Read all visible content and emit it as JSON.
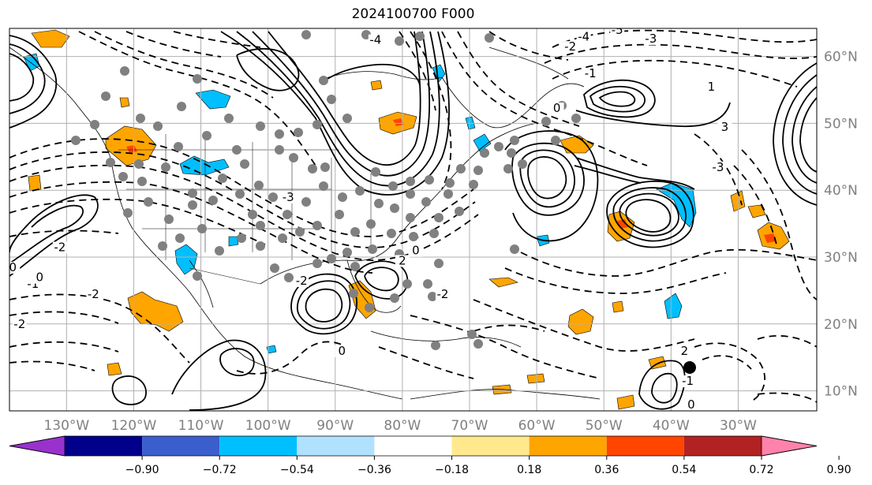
{
  "title": "2024100700 F000",
  "map": {
    "lon_labels": [
      "130°W",
      "120°W",
      "110°W",
      "100°W",
      "90°W",
      "80°W",
      "70°W",
      "60°W",
      "50°W",
      "40°W",
      "30°W"
    ],
    "lat_labels": [
      "60°N",
      "50°N",
      "40°N",
      "30°N",
      "20°N",
      "10°N"
    ],
    "contour_labels": [
      {
        "text": "-5",
        "lon": -48,
        "lat": 63.5
      },
      {
        "text": "-4",
        "lon": -53,
        "lat": 62.5
      },
      {
        "text": "-3",
        "lon": -43,
        "lat": 62.2
      },
      {
        "text": "-2",
        "lon": -55,
        "lat": 61
      },
      {
        "text": "-1",
        "lon": -52,
        "lat": 57
      },
      {
        "text": "0",
        "lon": -57,
        "lat": 51.8
      },
      {
        "text": "-4",
        "lon": -84,
        "lat": 62
      },
      {
        "text": "-3",
        "lon": -97,
        "lat": 38.5
      },
      {
        "text": "-2",
        "lon": -131,
        "lat": 31
      },
      {
        "text": "-2",
        "lon": -126,
        "lat": 24
      },
      {
        "text": "-1",
        "lon": -135,
        "lat": 25.5
      },
      {
        "text": "0",
        "lon": -138,
        "lat": 28
      },
      {
        "text": "0",
        "lon": -134,
        "lat": 26.5
      },
      {
        "text": "-2",
        "lon": -137,
        "lat": 19.5
      },
      {
        "text": "-2",
        "lon": -95,
        "lat": 26
      },
      {
        "text": "2",
        "lon": -80,
        "lat": 29
      },
      {
        "text": "0",
        "lon": -78,
        "lat": 30.5
      },
      {
        "text": "2",
        "lon": -38,
        "lat": 15.5
      },
      {
        "text": "-2",
        "lon": -74,
        "lat": 24
      },
      {
        "text": "0",
        "lon": -89,
        "lat": 15.5
      },
      {
        "text": "0",
        "lon": -37,
        "lat": 7.5
      },
      {
        "text": "-1",
        "lon": -37.5,
        "lat": 11
      },
      {
        "text": "-3",
        "lon": -33,
        "lat": 43
      },
      {
        "text": "1",
        "lon": -34,
        "lat": 55
      },
      {
        "text": "3",
        "lon": -32,
        "lat": 49
      }
    ],
    "colorbar": {
      "ticks": [
        "−0.90",
        "−0.72",
        "−0.54",
        "−0.36",
        "−0.18",
        "0.18",
        "0.36",
        "0.54",
        "0.72",
        "0.90"
      ],
      "colors": [
        "#9932cc",
        "#00008b",
        "#3a5fcd",
        "#00bfff",
        "#b0e2ff",
        "#ffffff",
        "#ffe98c",
        "#ffa500",
        "#ff4500",
        "#b22222",
        "#ff82ab"
      ]
    },
    "colors": {
      "positive_shade": "#ffa500",
      "positive_core": "#ff4500",
      "negative_shade": "#00bfff",
      "station_marker": "#808080",
      "highlight_marker": "#000000",
      "grid": "#b0b0b0",
      "axis_text": "#808080"
    }
  }
}
